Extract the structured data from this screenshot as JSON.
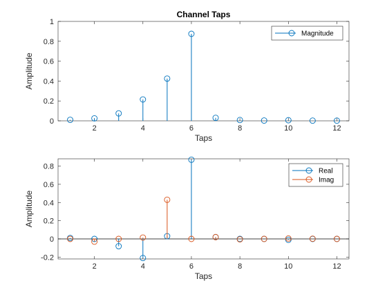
{
  "figure": {
    "background": "#ffffff"
  },
  "chart_data": [
    {
      "type": "stem",
      "title": "Channel Taps",
      "xlabel": "Taps",
      "ylabel": "Amplitude",
      "xlim": [
        0.5,
        12.5
      ],
      "ylim": [
        0,
        1
      ],
      "xticks": [
        2,
        4,
        6,
        8,
        10,
        12
      ],
      "xtick_labels": [
        "2",
        "4",
        "6",
        "8",
        "10",
        "12"
      ],
      "yticks": [
        0,
        0.2,
        0.4,
        0.6,
        0.8,
        1
      ],
      "ytick_labels": [
        "0",
        "0.2",
        "0.4",
        "0.6",
        "0.8",
        "1"
      ],
      "grid": false,
      "legend": {
        "position": "top-right",
        "entries": [
          "Magnitude"
        ]
      },
      "x": [
        1,
        2,
        3,
        4,
        5,
        6,
        7,
        8,
        9,
        10,
        11,
        12
      ],
      "series": [
        {
          "name": "Magnitude",
          "color": "#0072BD",
          "values": [
            0.01,
            0.025,
            0.075,
            0.215,
            0.425,
            0.875,
            0.03,
            0.008,
            0.003,
            0.006,
            0.002,
            0.002
          ]
        }
      ]
    },
    {
      "type": "stem",
      "title": "",
      "xlabel": "Taps",
      "ylabel": "Amplitude",
      "xlim": [
        0.5,
        12.5
      ],
      "ylim": [
        -0.22,
        0.88
      ],
      "xticks": [
        2,
        4,
        6,
        8,
        10,
        12
      ],
      "xtick_labels": [
        "2",
        "4",
        "6",
        "8",
        "10",
        "12"
      ],
      "yticks": [
        -0.2,
        0,
        0.2,
        0.4,
        0.6,
        0.8
      ],
      "ytick_labels": [
        "-0.2",
        "0",
        "0.2",
        "0.4",
        "0.6",
        "0.8"
      ],
      "grid": false,
      "baseline": 0,
      "legend": {
        "position": "top-right",
        "entries": [
          "Real",
          "Imag"
        ]
      },
      "x": [
        1,
        2,
        3,
        4,
        5,
        6,
        7,
        8,
        9,
        10,
        11,
        12
      ],
      "series": [
        {
          "name": "Real",
          "color": "#0072BD",
          "values": [
            0.01,
            0.0,
            -0.08,
            -0.21,
            0.03,
            0.87,
            0.02,
            0.0,
            0.0,
            -0.01,
            0.0,
            0.0
          ]
        },
        {
          "name": "Imag",
          "color": "#D95319",
          "values": [
            0.0,
            -0.03,
            0.0,
            0.015,
            0.43,
            0.0,
            0.02,
            -0.005,
            0.0,
            0.005,
            0.002,
            0.0
          ]
        }
      ]
    }
  ]
}
